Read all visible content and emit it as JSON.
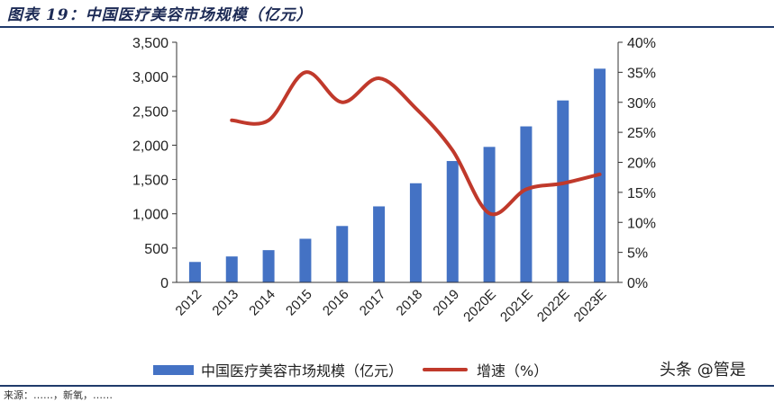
{
  "figure": {
    "title": "图表 19：中国医疗美容市场规模（亿元）",
    "source": "来源：……，新氧，……"
  },
  "watermark": "头条 @管是",
  "colors": {
    "bar": "#4472c4",
    "line": "#c0392b",
    "rule": "#1f3a6b",
    "axis": "#333333"
  },
  "chart_data": {
    "type": "bar",
    "categories": [
      "2012",
      "2013",
      "2014",
      "2015",
      "2016",
      "2017",
      "2018",
      "2019",
      "2020E",
      "2021E",
      "2022E",
      "2023E"
    ],
    "series": [
      {
        "name": "中国医疗美容市场规模（亿元）",
        "type": "bar",
        "axis": "left",
        "values": [
          298,
          378,
          470,
          636,
          822,
          1108,
          1445,
          1769,
          1975,
          2274,
          2652,
          3115
        ]
      },
      {
        "name": "增速（%）",
        "type": "line",
        "axis": "right",
        "values": [
          null,
          27,
          27,
          35,
          30,
          34,
          29,
          22,
          11.5,
          15.5,
          16.5,
          18
        ]
      }
    ],
    "y_left": {
      "min": 0,
      "max": 3500,
      "ticks": [
        "0",
        "500",
        "1,000",
        "1,500",
        "2,000",
        "2,500",
        "3,000",
        "3,500"
      ]
    },
    "y_right": {
      "min": 0,
      "max": 40,
      "ticks": [
        "0%",
        "5%",
        "10%",
        "15%",
        "20%",
        "25%",
        "30%",
        "35%",
        "40%"
      ]
    },
    "grid": false,
    "legend": "bottom"
  }
}
